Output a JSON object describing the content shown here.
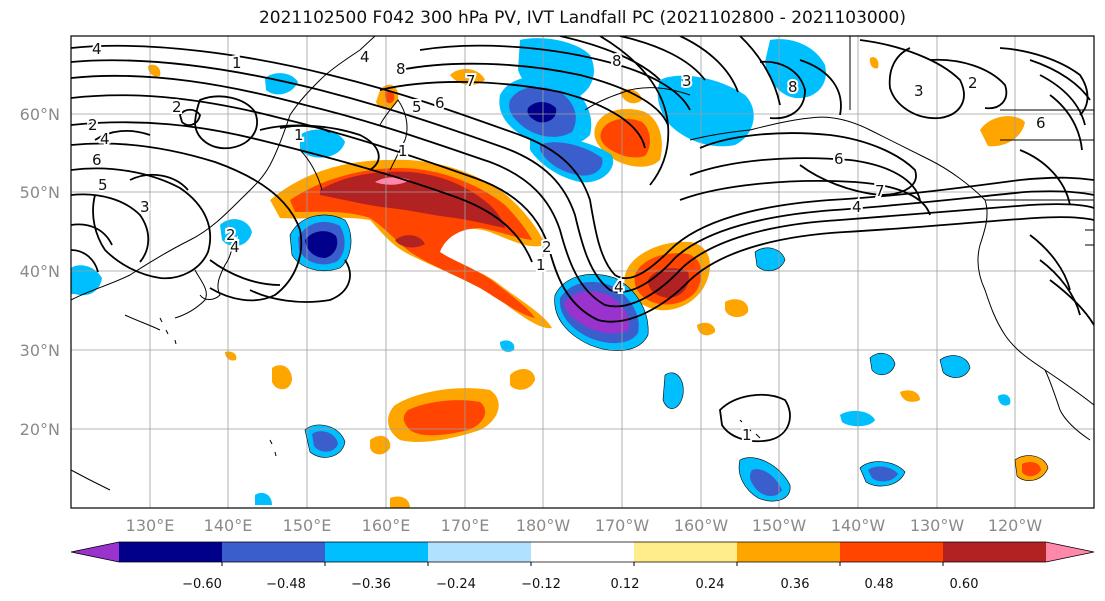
{
  "title": "2021102500 F042 300 hPa PV, IVT Landfall PC (2021102800 - 2021103000)",
  "lat_labels": [
    "60°N",
    "50°N",
    "40°N",
    "30°N",
    "20°N"
  ],
  "lon_labels": [
    "130°E",
    "140°E",
    "150°E",
    "160°E",
    "170°E",
    "180°W",
    "170°W",
    "160°W",
    "150°W",
    "140°W",
    "130°W",
    "120°W"
  ],
  "colorbar": {
    "colors": [
      "#9a32cd",
      "#00008b",
      "#3a5fcd",
      "#00bfff",
      "#b0e2ff",
      "#ffffff",
      "#ffec8b",
      "#ffa500",
      "#ff4500",
      "#b22222",
      "#ff88aa"
    ],
    "tick_labels": [
      "−0.60",
      "−0.48",
      "−0.36",
      "−0.24",
      "−0.12",
      "0.12",
      "0.24",
      "0.36",
      "0.48",
      "0.60"
    ]
  },
  "contour_labels": [
    "4",
    "1",
    "2",
    "4",
    "6",
    "4",
    "2",
    "5",
    "8",
    "6",
    "1",
    "7",
    "8",
    "8",
    "3",
    "2",
    "3",
    "5",
    "6",
    "7",
    "4",
    "2",
    "1",
    "4",
    "1",
    "6",
    "3",
    "2",
    "4",
    "1"
  ]
}
